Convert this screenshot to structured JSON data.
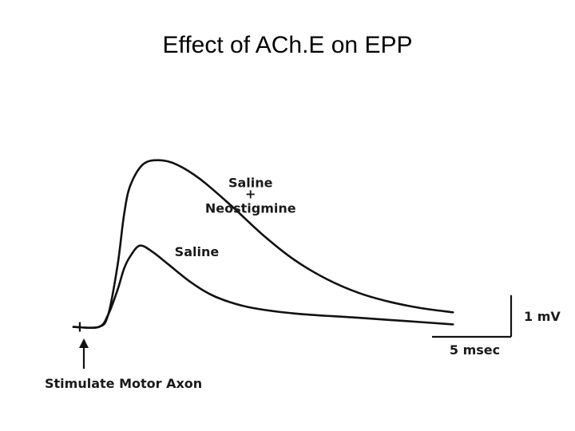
{
  "chart_data": {
    "type": "line",
    "title": "Effect of ACh.E on EPP",
    "xlabel": "",
    "ylabel": "",
    "x_unit": "msec",
    "y_unit": "mV",
    "xlim": [
      0,
      25
    ],
    "ylim": [
      -0.2,
      4.3
    ],
    "series": [
      {
        "name": "Saline + Neostigmine",
        "name_lines": [
          "Saline",
          "+",
          "Neostigmine"
        ],
        "x": [
          0,
          1.6,
          2.2,
          2.8,
          3.2,
          3.6,
          4.4,
          5.4,
          6.5,
          8,
          10,
          12,
          14,
          16,
          18,
          20,
          22,
          24
        ],
        "y": [
          0,
          0,
          0.3,
          1.5,
          2.7,
          3.4,
          3.9,
          4.0,
          3.9,
          3.55,
          2.9,
          2.2,
          1.6,
          1.15,
          0.82,
          0.6,
          0.45,
          0.35
        ]
      },
      {
        "name": "Saline",
        "name_lines": [
          "Saline"
        ],
        "x": [
          0,
          1.6,
          2.2,
          2.8,
          3.2,
          3.6,
          4.2,
          5.0,
          6.0,
          7.5,
          9,
          11,
          14,
          18,
          21,
          24
        ],
        "y": [
          0,
          0,
          0.3,
          0.9,
          1.4,
          1.7,
          1.95,
          1.8,
          1.5,
          1.05,
          0.72,
          0.48,
          0.32,
          0.22,
          0.14,
          0.06
        ]
      }
    ],
    "scale_bar": {
      "x_value": 5,
      "x_label": "5 msec",
      "y_value": 1,
      "y_label": "1 mV"
    },
    "annotations": [
      {
        "text": "Stimulate Motor Axon",
        "x": 0.4
      }
    ]
  }
}
